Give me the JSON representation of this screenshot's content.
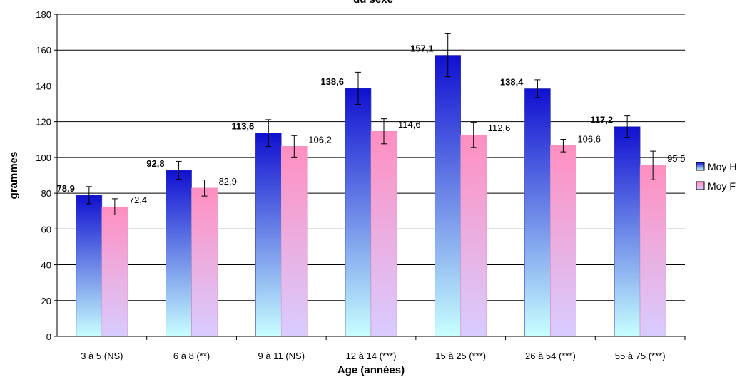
{
  "chart_data": {
    "type": "bar",
    "title": "du sexe",
    "xlabel": "Age (années)",
    "ylabel": "grammes",
    "ylim": [
      0,
      180
    ],
    "yticks": [
      0,
      20,
      40,
      60,
      80,
      100,
      120,
      140,
      160,
      180
    ],
    "categories": [
      "3 à 5 (NS)",
      "6 à 8 (**)",
      "9 à 11 (NS)",
      "12 à 14 (***)",
      "15 à 25 (***)",
      "26 à 54 (***)",
      "55 à 75 (***)"
    ],
    "series": [
      {
        "name": "Moy H",
        "values": [
          78.9,
          92.8,
          113.6,
          138.6,
          157.1,
          138.4,
          117.2
        ],
        "labels": [
          "78,9",
          "92,8",
          "113,6",
          "138,6",
          "157,1",
          "138,4",
          "117,2"
        ],
        "error": [
          4.8,
          5.0,
          7.5,
          9.0,
          12.0,
          5.0,
          6.0
        ],
        "color_top": "#1010d0",
        "color_bottom": "#c8ffff"
      },
      {
        "name": "Moy F",
        "values": [
          72.4,
          82.9,
          106.2,
          114.6,
          112.6,
          106.6,
          95.5
        ],
        "labels": [
          "72,4",
          "82,9",
          "106,2",
          "114,6",
          "112,6",
          "106,6",
          "95,5"
        ],
        "error": [
          4.5,
          4.5,
          6.0,
          7.0,
          7.0,
          3.5,
          8.0
        ],
        "color_top": "#ff8fc0",
        "color_bottom": "#d8ccff"
      }
    ],
    "grid": true,
    "legend_position": "right"
  }
}
